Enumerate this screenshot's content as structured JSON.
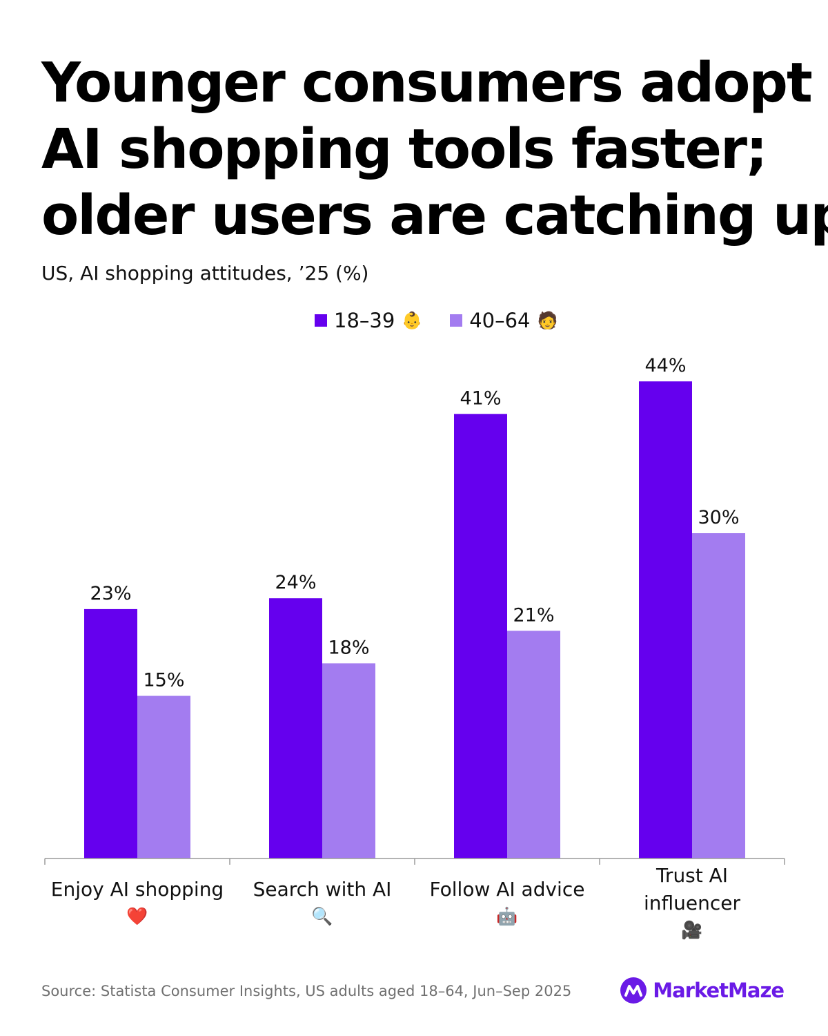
{
  "header": {
    "title_lines": [
      "Younger consumers adopt",
      "AI shopping tools faster;",
      "older users are catching up"
    ],
    "subtitle": "US, AI shopping attitudes, ’25 (%)"
  },
  "legend": {
    "items": [
      {
        "label": "18–39",
        "emoji": "👶",
        "emoji_icon": "baby-icon",
        "color": "#6500ee"
      },
      {
        "label": "40–64",
        "emoji": "🧑",
        "emoji_icon": "person-icon",
        "color": "#a37cf0"
      }
    ]
  },
  "chart_data": {
    "type": "bar",
    "categories": [
      {
        "lines": [
          "Enjoy AI shopping"
        ],
        "emoji": "❤️",
        "icon": "heart-icon"
      },
      {
        "lines": [
          "Search with AI"
        ],
        "emoji": "🔍",
        "icon": "magnifier-icon"
      },
      {
        "lines": [
          "Follow AI advice"
        ],
        "emoji": "🤖",
        "icon": "robot-icon"
      },
      {
        "lines": [
          "Trust AI",
          "influencer"
        ],
        "emoji": "🎥",
        "icon": "camera-icon"
      }
    ],
    "series": [
      {
        "name": "18–39",
        "values": [
          23,
          24,
          41,
          44
        ],
        "color": "#6500ee"
      },
      {
        "name": "40–64",
        "values": [
          15,
          18,
          21,
          30
        ],
        "color": "#a37cf0"
      }
    ],
    "value_suffix": "%",
    "ylim": [
      0,
      45
    ],
    "grid": false,
    "legend_position": "top-center"
  },
  "footer": {
    "source": "Source: Statista Consumer Insights, US adults aged 18–64, Jun–Sep 2025",
    "brand": "MarketMaze",
    "brand_color": "#6a1ae6"
  }
}
